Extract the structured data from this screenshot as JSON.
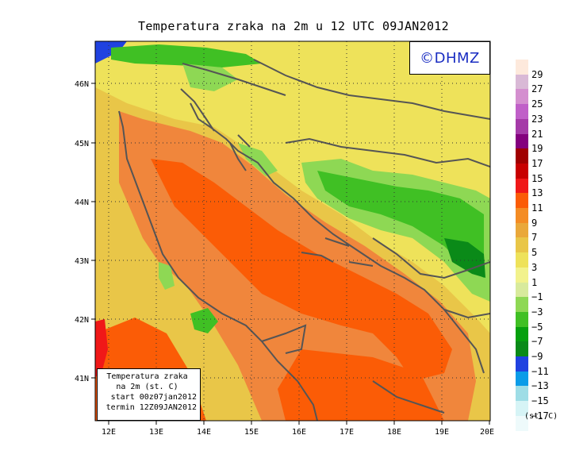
{
  "title": "Temperatura zraka na 2m u 12 UTC 09JAN2012",
  "logo": "©DHMZ",
  "info_box": {
    "line1": "Temperatura zraka",
    "line2": "na 2m (st. C)",
    "line3": "start 00z07jan2012",
    "line4": "termin 12Z09JAN2012"
  },
  "axes": {
    "lon_labels": [
      "12E",
      "13E",
      "14E",
      "15E",
      "16E",
      "17E",
      "18E",
      "19E",
      "20E"
    ],
    "lat_labels": [
      "46N",
      "45N",
      "44N",
      "43N",
      "42N",
      "41N"
    ]
  },
  "legend": {
    "units": "(st. C)",
    "labels": [
      "29",
      "27",
      "25",
      "23",
      "21",
      "19",
      "17",
      "15",
      "13",
      "11",
      "9",
      "7",
      "5",
      "3",
      "1",
      "−1",
      "−3",
      "−5",
      "−7",
      "−9",
      "−11",
      "−13",
      "−15",
      "−17"
    ],
    "colors": [
      "#fde9dc",
      "#d9b9d6",
      "#d48fcf",
      "#c060c8",
      "#a53aa8",
      "#84007e",
      "#a00000",
      "#c80000",
      "#f01818",
      "#fb5c06",
      "#f48c24",
      "#eaa83a",
      "#e9c648",
      "#eee25a",
      "#f2f28c",
      "#d8ea9c",
      "#8ed854",
      "#40c024",
      "#06a00e",
      "#0a8a18",
      "#2042e0",
      "#0a9ce8",
      "#9edde6",
      "#d6f4f6",
      "#eefafb"
    ]
  },
  "map": {
    "variable": "2 m air temperature",
    "colors": {
      "sea_deep": "#fb5c06",
      "sea_mid": "#f0863c",
      "coast": "#e9c648",
      "inland": "#eee25a",
      "cold": "#8ed854",
      "very_cold": "#40c024",
      "coldest": "#0a8a18",
      "frozen": "#2042e0",
      "warm_patch": "#f01818"
    }
  }
}
